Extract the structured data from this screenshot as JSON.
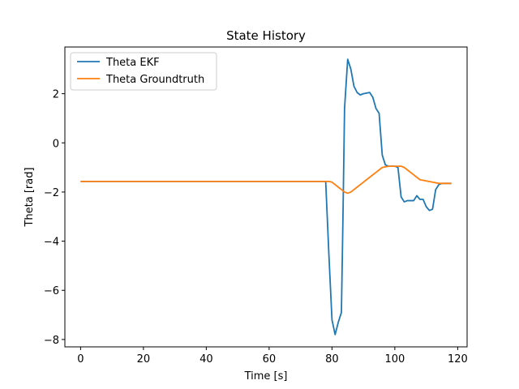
{
  "chart_data": {
    "type": "line",
    "title": "State History",
    "xlabel": "Time [s]",
    "ylabel": "Theta [rad]",
    "xlim": [
      -5,
      123
    ],
    "ylim": [
      -8.3,
      3.9
    ],
    "xticks": [
      0,
      20,
      40,
      60,
      80,
      100,
      120
    ],
    "yticks": [
      -8,
      -6,
      -4,
      -2,
      0,
      2
    ],
    "grid": false,
    "legend_position": "top-left",
    "series": [
      {
        "name": "Theta EKF",
        "color": "#1f77b4",
        "points": [
          [
            0,
            -1.57
          ],
          [
            20,
            -1.57
          ],
          [
            40,
            -1.57
          ],
          [
            60,
            -1.57
          ],
          [
            70,
            -1.57
          ],
          [
            78,
            -1.57
          ],
          [
            79,
            -4.5
          ],
          [
            80,
            -7.2
          ],
          [
            81,
            -7.8
          ],
          [
            82,
            -7.3
          ],
          [
            83,
            -6.9
          ],
          [
            83.5,
            -3.0
          ],
          [
            84,
            1.4
          ],
          [
            85,
            3.4
          ],
          [
            86,
            3.0
          ],
          [
            87,
            2.3
          ],
          [
            88,
            2.05
          ],
          [
            89,
            1.95
          ],
          [
            90,
            2.0
          ],
          [
            92,
            2.05
          ],
          [
            93,
            1.85
          ],
          [
            94,
            1.4
          ],
          [
            95,
            1.2
          ],
          [
            96,
            -0.5
          ],
          [
            97,
            -0.9
          ],
          [
            98,
            -0.95
          ],
          [
            100,
            -0.95
          ],
          [
            101,
            -1.0
          ],
          [
            102,
            -2.2
          ],
          [
            103,
            -2.4
          ],
          [
            104,
            -2.35
          ],
          [
            106,
            -2.35
          ],
          [
            107,
            -2.15
          ],
          [
            108,
            -2.3
          ],
          [
            109,
            -2.3
          ],
          [
            110,
            -2.6
          ],
          [
            111,
            -2.75
          ],
          [
            112,
            -2.7
          ],
          [
            113,
            -1.9
          ],
          [
            114,
            -1.7
          ],
          [
            115,
            -1.65
          ],
          [
            118,
            -1.65
          ]
        ]
      },
      {
        "name": "Theta Groundtruth",
        "color": "#ff7f0e",
        "points": [
          [
            0,
            -1.57
          ],
          [
            20,
            -1.57
          ],
          [
            40,
            -1.57
          ],
          [
            60,
            -1.57
          ],
          [
            75,
            -1.57
          ],
          [
            79,
            -1.57
          ],
          [
            80,
            -1.6
          ],
          [
            81,
            -1.7
          ],
          [
            82,
            -1.8
          ],
          [
            83,
            -1.9
          ],
          [
            84,
            -2.0
          ],
          [
            85,
            -2.05
          ],
          [
            86,
            -2.0
          ],
          [
            87,
            -1.9
          ],
          [
            88,
            -1.8
          ],
          [
            90,
            -1.6
          ],
          [
            92,
            -1.4
          ],
          [
            94,
            -1.2
          ],
          [
            96,
            -1.0
          ],
          [
            98,
            -0.95
          ],
          [
            100,
            -0.95
          ],
          [
            102,
            -0.95
          ],
          [
            103,
            -1.0
          ],
          [
            104,
            -1.1
          ],
          [
            105,
            -1.2
          ],
          [
            106,
            -1.3
          ],
          [
            107,
            -1.4
          ],
          [
            108,
            -1.5
          ],
          [
            110,
            -1.55
          ],
          [
            112,
            -1.6
          ],
          [
            114,
            -1.65
          ],
          [
            116,
            -1.65
          ],
          [
            118,
            -1.65
          ]
        ]
      }
    ]
  }
}
